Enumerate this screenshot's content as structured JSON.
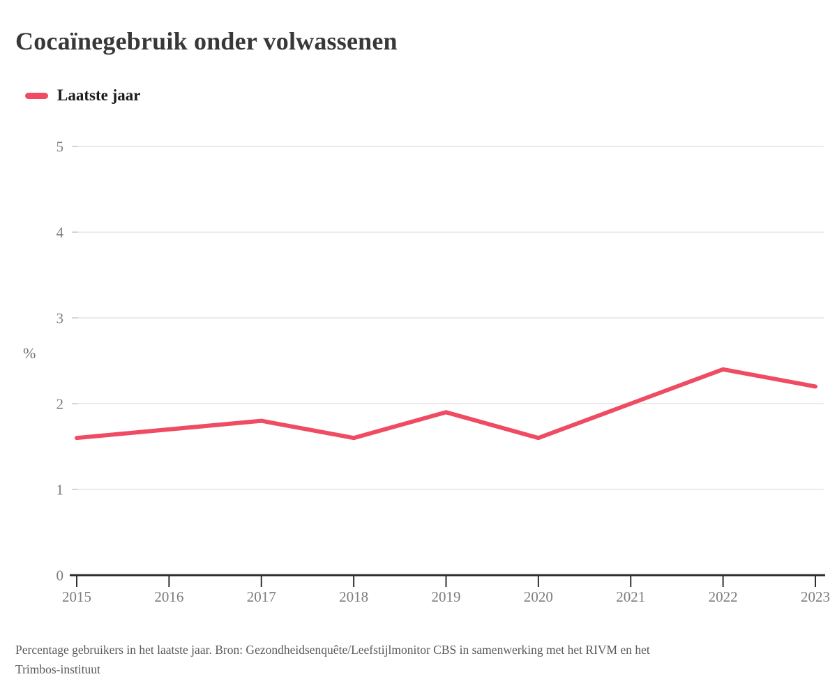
{
  "title": "Cocaïnegebruik onder volwassenen",
  "legend": {
    "label": "Laatste jaar"
  },
  "chart_data": {
    "type": "line",
    "title": "Cocaïnegebruik onder volwassenen",
    "x": [
      2015,
      2016,
      2017,
      2018,
      2019,
      2020,
      2021,
      2022,
      2023
    ],
    "series": [
      {
        "name": "Laatste jaar",
        "values": [
          1.6,
          1.7,
          1.8,
          1.6,
          1.9,
          1.6,
          2.0,
          2.4,
          2.2
        ]
      }
    ],
    "xlabel": "",
    "ylabel": "%",
    "ylim": [
      0,
      5
    ],
    "yticks": [
      0,
      1,
      2,
      3,
      4,
      5
    ],
    "grid": true,
    "legend_position": "top-left",
    "line_color": "#EF4B63"
  },
  "footer": {
    "caption": "Percentage gebruikers in het laatste jaar. Bron: Gezondheidsenquête/Leefstijlmonitor CBS in samenwerking met het RIVM en het Trimbos-instituut"
  },
  "colors": {
    "accent": "#EF4B63",
    "grid": "#E6E6E6",
    "grid_tick": "#CFCFCF",
    "axis": "#2F2F2F",
    "tick_label": "#7D7D7D",
    "title_text": "#383838",
    "caption_text": "#595959"
  }
}
